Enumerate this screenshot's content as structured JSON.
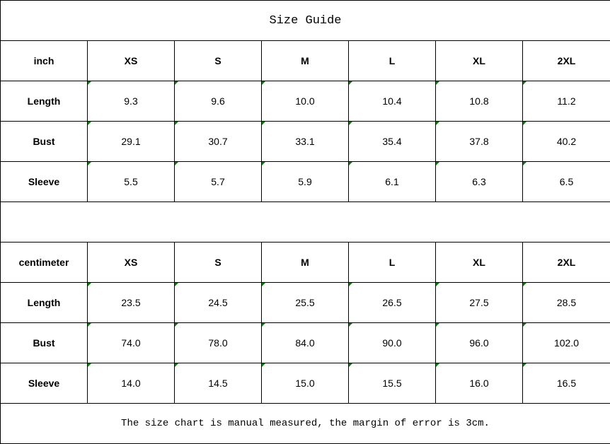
{
  "title": "Size Guide",
  "tables": [
    {
      "unit": "inch",
      "sizes": [
        "XS",
        "S",
        "M",
        "L",
        "XL",
        "2XL"
      ],
      "rows": [
        {
          "label": "Length",
          "values": [
            "9.3",
            "9.6",
            "10.0",
            "10.4",
            "10.8",
            "11.2"
          ]
        },
        {
          "label": "Bust",
          "values": [
            "29.1",
            "30.7",
            "33.1",
            "35.4",
            "37.8",
            "40.2"
          ]
        },
        {
          "label": "Sleeve",
          "values": [
            "5.5",
            "5.7",
            "5.9",
            "6.1",
            "6.3",
            "6.5"
          ]
        }
      ]
    },
    {
      "unit": "centimeter",
      "sizes": [
        "XS",
        "S",
        "M",
        "L",
        "XL",
        "2XL"
      ],
      "rows": [
        {
          "label": "Length",
          "values": [
            "23.5",
            "24.5",
            "25.5",
            "26.5",
            "27.5",
            "28.5"
          ]
        },
        {
          "label": "Bust",
          "values": [
            "74.0",
            "78.0",
            "84.0",
            "90.0",
            "96.0",
            "102.0"
          ]
        },
        {
          "label": "Sleeve",
          "values": [
            "14.0",
            "14.5",
            "15.0",
            "15.5",
            "16.0",
            "16.5"
          ]
        }
      ]
    }
  ],
  "note": "The size chart is manual measured, the margin of error is 3cm.",
  "colors": {
    "cell_marker": "#008000",
    "border": "#000000"
  }
}
